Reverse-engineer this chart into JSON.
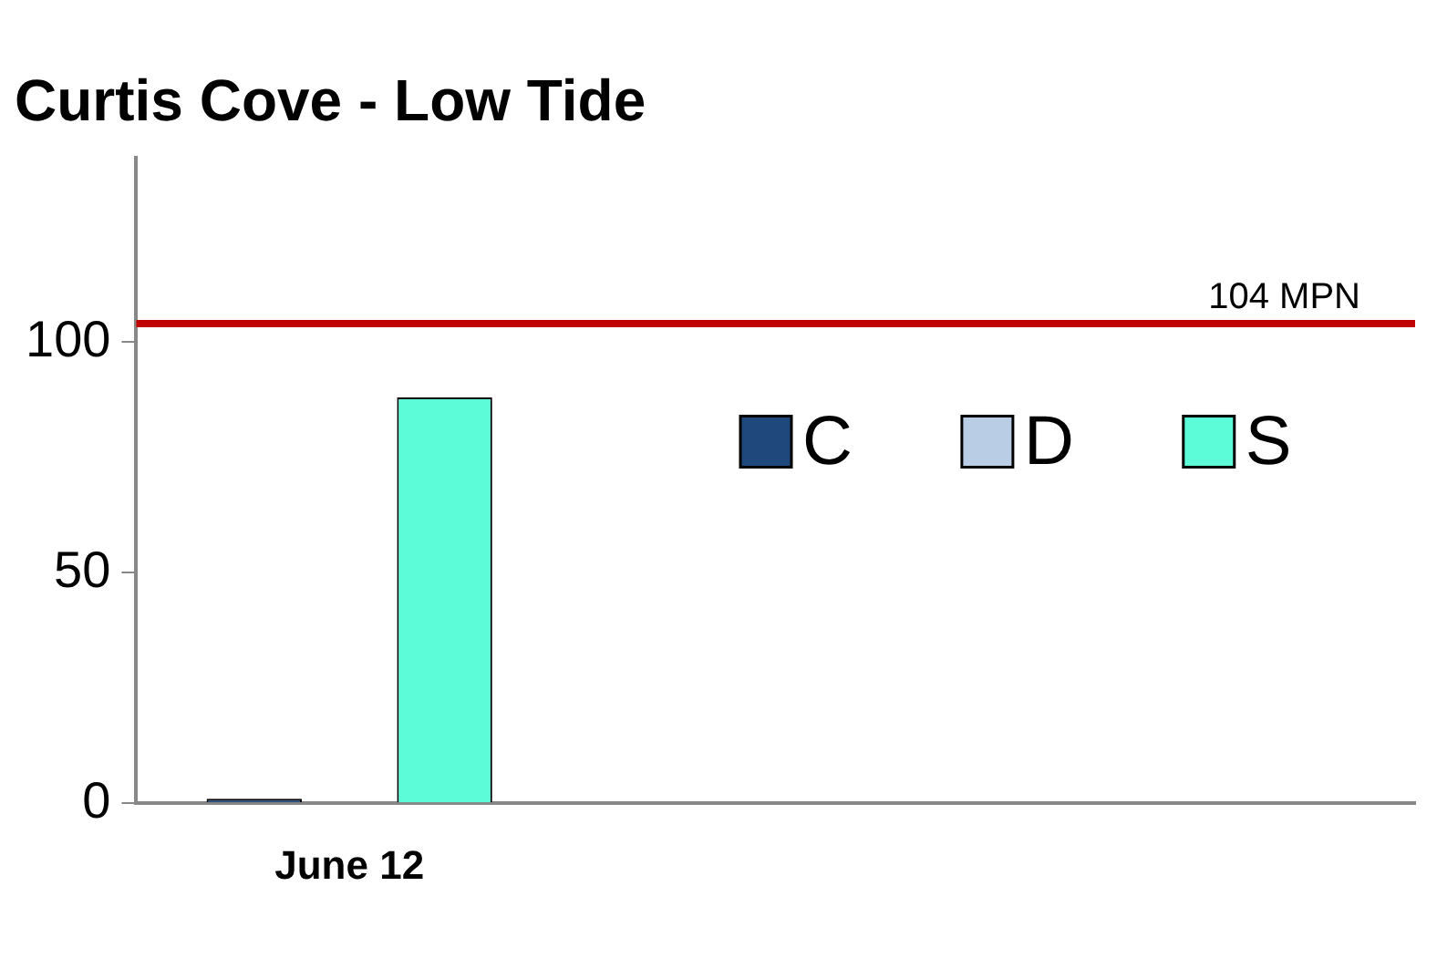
{
  "chart_data": {
    "type": "bar",
    "title": "Curtis Cove - Low Tide",
    "categories": [
      "June 12",
      null,
      null
    ],
    "series": [
      {
        "name": "C",
        "color": "#1f497d",
        "values": [
          1,
          null,
          null
        ]
      },
      {
        "name": "D",
        "color": "#b9cde5",
        "values": [
          null,
          null,
          null
        ]
      },
      {
        "name": "S",
        "color": "#5cfcd9",
        "values": [
          88,
          null,
          null
        ]
      }
    ],
    "ylim": [
      0,
      140
    ],
    "yticks": [
      0,
      50,
      100
    ],
    "grid": false,
    "legend": "right",
    "ref_lines": [
      {
        "axis": "y",
        "value": 104,
        "label": "104 MPN",
        "color": "#c00000"
      }
    ]
  }
}
